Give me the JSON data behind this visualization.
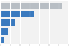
{
  "values": [
    127316,
    68695,
    30000,
    16000,
    7000
  ],
  "bar_colors": [
    "#b8bec4",
    "#3a7abf",
    "#3a7abf",
    "#3a7abf",
    "#3a7abf"
  ],
  "background_color": "#ffffff",
  "plot_bg_color": "#f2f2f2",
  "xlim": [
    0,
    140000
  ],
  "bar_height": 0.75,
  "grid_color": "#ffffff",
  "tick_color": "#888888"
}
